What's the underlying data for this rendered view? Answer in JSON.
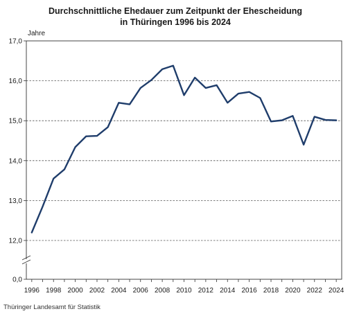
{
  "source": "Thüringer Landesamt für Statistik",
  "chart_data": {
    "type": "line",
    "title_lines": [
      "Durchschnittliche Ehedauer zum Zeitpunkt der Ehescheidung",
      "in Thüringen 1996 bis 2024"
    ],
    "ylabel": "Jahre",
    "xlabel": "",
    "y_ticks": [
      "17,0",
      "16,0",
      "15,0",
      "14,0",
      "13,0",
      "12,0",
      "0,0"
    ],
    "y_tick_values": [
      17,
      16,
      15,
      14,
      13,
      12,
      0
    ],
    "x_ticks": [
      "1996",
      "1998",
      "2000",
      "2002",
      "2004",
      "2006",
      "2008",
      "2010",
      "2012",
      "2014",
      "2016",
      "2018",
      "2020",
      "2022",
      "2024"
    ],
    "axis_break": true,
    "grid": "horizontal dashed",
    "line_color": "#1f3d6b",
    "x": [
      1996,
      1997,
      1998,
      1999,
      2000,
      2001,
      2002,
      2003,
      2004,
      2005,
      2006,
      2007,
      2008,
      2009,
      2010,
      2011,
      2012,
      2013,
      2014,
      2015,
      2016,
      2017,
      2018,
      2019,
      2020,
      2021,
      2022,
      2023,
      2024
    ],
    "values": [
      12.2,
      12.85,
      13.55,
      13.78,
      14.34,
      14.61,
      14.62,
      14.84,
      15.45,
      15.41,
      15.82,
      16.02,
      16.29,
      16.38,
      15.64,
      16.08,
      15.82,
      15.89,
      15.45,
      15.68,
      15.72,
      15.57,
      14.98,
      15.01,
      15.12,
      14.4,
      15.1,
      15.02,
      15.01
    ]
  }
}
